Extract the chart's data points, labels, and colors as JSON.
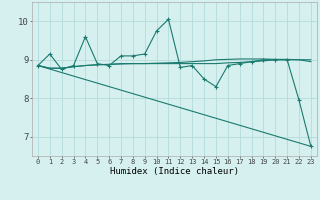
{
  "xlabel": "Humidex (Indice chaleur)",
  "background_color": "#d6f0f0",
  "grid_color": "#b8dede",
  "line_color": "#1a7a6e",
  "xlim": [
    -0.5,
    23.5
  ],
  "ylim": [
    6.5,
    10.5
  ],
  "yticks": [
    7,
    8,
    9,
    10
  ],
  "xticks": [
    0,
    1,
    2,
    3,
    4,
    5,
    6,
    7,
    8,
    9,
    10,
    11,
    12,
    13,
    14,
    15,
    16,
    17,
    18,
    19,
    20,
    21,
    22,
    23
  ],
  "series1_x": [
    0,
    1,
    2,
    3,
    4,
    5,
    6,
    7,
    8,
    9,
    10,
    11,
    12,
    13,
    14,
    15,
    16,
    17,
    18,
    19,
    20,
    21,
    22,
    23
  ],
  "series1_y": [
    8.85,
    9.15,
    8.75,
    8.85,
    9.6,
    8.9,
    8.85,
    9.1,
    9.1,
    9.15,
    9.75,
    10.05,
    8.8,
    8.85,
    8.5,
    8.3,
    8.85,
    8.9,
    8.95,
    9.0,
    9.0,
    9.0,
    7.95,
    6.75
  ],
  "series2_x": [
    0,
    1,
    2,
    3,
    4,
    5,
    6,
    7,
    8,
    9,
    10,
    11,
    12,
    13,
    14,
    15,
    16,
    17,
    18,
    19,
    20,
    21,
    22,
    23
  ],
  "series2_y": [
    8.85,
    8.78,
    8.78,
    8.82,
    8.85,
    8.87,
    8.88,
    8.89,
    8.9,
    8.9,
    8.9,
    8.9,
    8.9,
    8.9,
    8.9,
    8.9,
    8.92,
    8.93,
    8.95,
    8.97,
    9.0,
    9.0,
    9.0,
    8.95
  ],
  "series3_x": [
    0,
    1,
    2,
    3,
    4,
    5,
    6,
    7,
    8,
    9,
    10,
    11,
    12,
    13,
    14,
    15,
    16,
    17,
    18,
    19,
    20,
    21,
    22,
    23
  ],
  "series3_y": [
    8.85,
    8.78,
    8.78,
    8.82,
    8.85,
    8.87,
    8.88,
    8.9,
    8.9,
    8.9,
    8.91,
    8.92,
    8.93,
    8.95,
    8.97,
    9.0,
    9.01,
    9.02,
    9.02,
    9.02,
    9.01,
    9.01,
    9.0,
    9.0
  ],
  "series4_x": [
    0,
    23
  ],
  "series4_y": [
    8.85,
    6.75
  ]
}
